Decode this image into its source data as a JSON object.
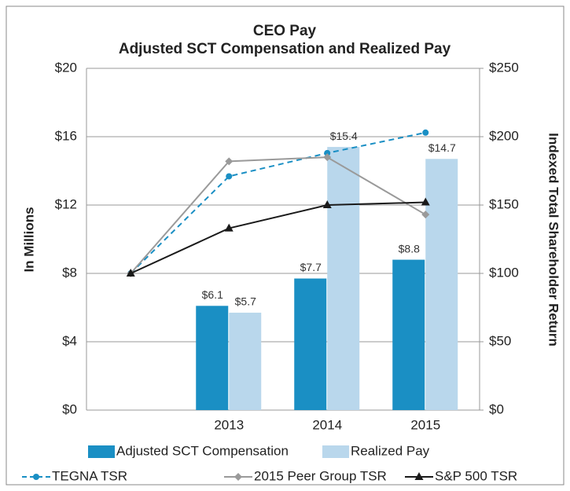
{
  "chart_data": {
    "type": "bar",
    "title": [
      "CEO Pay",
      "Adjusted SCT Compensation and Realized Pay"
    ],
    "ylabel": "In Millions",
    "y2label": "Indexed Total Shareholder Return",
    "categories": [
      null,
      "2013",
      "2014",
      "2015"
    ],
    "series": [
      {
        "name": "Adjusted SCT Compensation",
        "type": "bar",
        "color": "#1a8fc4",
        "values": [
          null,
          6.1,
          7.7,
          8.8
        ],
        "value_labels": [
          null,
          "$6.1",
          "$7.7",
          "$8.8"
        ]
      },
      {
        "name": "Realized Pay",
        "type": "bar",
        "color": "#b9d7ec",
        "values": [
          null,
          5.7,
          15.4,
          14.7
        ],
        "value_labels": [
          null,
          "$5.7",
          "$15.4",
          "$14.7"
        ]
      },
      {
        "name": "TEGNA TSR",
        "type": "line",
        "axis": "y2",
        "color": "#1a8fc4",
        "dashed": true,
        "marker": "circle",
        "values": [
          100,
          171,
          188,
          203
        ]
      },
      {
        "name": "2015 Peer Group TSR",
        "type": "line",
        "axis": "y2",
        "color": "#9a9a9a",
        "marker": "diamond",
        "values": [
          100,
          182,
          185,
          143
        ]
      },
      {
        "name": "S&P 500 TSR",
        "type": "line",
        "axis": "y2",
        "color": "#1a1a1a",
        "marker": "triangle",
        "values": [
          100,
          133,
          150,
          152
        ]
      }
    ],
    "ylim": [
      0,
      20
    ],
    "yticks": [
      {
        "value": 0,
        "label": "$0"
      },
      {
        "value": 4,
        "label": "$4"
      },
      {
        "value": 8,
        "label": "$8"
      },
      {
        "value": 12,
        "label": "$12"
      },
      {
        "value": 16,
        "label": "$16"
      },
      {
        "value": 20,
        "label": "$20"
      }
    ],
    "y2lim": [
      0,
      250
    ],
    "y2ticks": [
      {
        "value": 0,
        "label": "$0"
      },
      {
        "value": 50,
        "label": "$50"
      },
      {
        "value": 100,
        "label": "$100"
      },
      {
        "value": 150,
        "label": "$150"
      },
      {
        "value": 200,
        "label": "$200"
      },
      {
        "value": 250,
        "label": "$250"
      }
    ],
    "grid": true
  }
}
